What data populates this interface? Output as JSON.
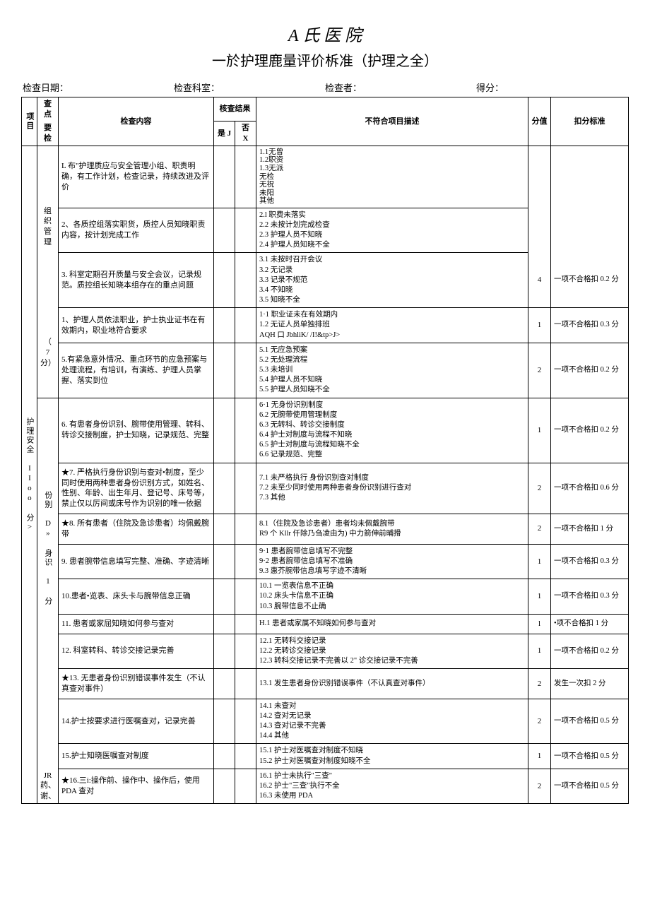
{
  "title1": "A 氏 医 院",
  "title2": "一於护理鹿量评价柝准（护理之全）",
  "meta": {
    "date_label": "检查日期：",
    "dept_label": "检查科室：",
    "checker_label": "检查者：",
    "score_label": "得分："
  },
  "headers": {
    "project": "项目",
    "checkpoint_top": "查点",
    "checkpoint_bot": "要检",
    "content": "检查内容",
    "result": "核查结果",
    "yes": "是 J",
    "no": "否 X",
    "noncon": "不符合项目描述",
    "score": "分值",
    "deduct": "扣分标准"
  },
  "project_label": "护理安全 IIoo 分>",
  "groups": {
    "g1": {
      "label_top": "组织",
      "label_bot": "管理",
      "sub1": "（",
      "sub2": "7 分）"
    },
    "g2": {
      "label": "份别 D» 身识 1 分"
    },
    "g3": {
      "label_top": "JR",
      "label_mid": "药、",
      "label_bot": "谢、"
    }
  },
  "rows": [
    {
      "content": "L 布\"护理质应与安全管理小组、职责明确，有工作计划，检查记录，持续改进及评价",
      "desc": "1.1无曾\n1.2职资\n1.3无派\n无检\n无祝\n未阳\n其他",
      "score": "",
      "deduct": ""
    },
    {
      "content": "2、各质控组落实职货，质控人员知晓职责内容，按计划完成工作",
      "desc": "2.l 职费未落实\n2.2 未按计划完成检查\n2.3 护理人员不知晓\n2.4 护理人员知晓不全",
      "score": "",
      "deduct": ""
    },
    {
      "content": "3. 科室定期召开质量与安全会议，记录规范。质控组长知晓本组存在的重点问题",
      "desc": "3.1 未按时召开会议\n3.2 无记录\n3.3 记录不规范\n3.4 不知晓\n3.5 知晓不全",
      "score": "4",
      "deduct": "一项不合格扣 0.2 分"
    },
    {
      "content": "1、护理人员依法职业，护士执业证书在有效期内，职业地符合要求",
      "desc": "1·1 职业证未在有效期内\n1.2 无证人员单独排班\nAQH 口 JbhliK/ /I!&tp>J>",
      "score": "1",
      "deduct": "一项不合格扣 0.3 分"
    },
    {
      "content": "5.有紧急意外情况、重点环节的应急预案与处理流程，有培训，有演练、护理人员掌握、落实到位",
      "desc": "5.1 无应急预案\n5.2 无处理流程\n5.3 未培训\n5.4 护理人员不知晓\n5.5 护理人员知晓不全",
      "score": "2",
      "deduct": "一项不合格扣 0.2 分"
    },
    {
      "content": "6. 有患者身份识别、腕带使用管理、转科、转诊交接制度，护士知晓，记录规范、完整",
      "desc": "6·1 无身份识别制度\n6.2 无腕带使用管理制度\n6.3 无转科、转诊交接制度\n6.4 护士对制度与流程不知晓\n6.5 护士对制度与流程知晓不全\n6.6 记录规范、完整",
      "score": "1",
      "deduct": "一项不合格扣 0.2 分"
    },
    {
      "content": "★7. 严格执行身份识别与查对•制度，至少同时使用两种患者身份识别方式，如姓名、性别、年龄、出生年月、登记号、床号等，禁止仅以厉间或床号作为识别的唯一依据",
      "desc": "7.1 未严格执行 身份识别查对制度\n7.2 未至少同时使用两种患者身份识别进行查对\n7.3 其他",
      "score": "2",
      "deduct": "一项不合格扣 0.6 分"
    },
    {
      "content": "★8. 所有患者（住院及急诊患者）均佩戴腕带",
      "desc": "8.1（住院及急诊患者）患者均未佩戴腕带\nR9 个 Kllr 仟除乃刍凌由为) 中力箭伸前晡搰",
      "score": "2",
      "deduct": "一项不合格扣 1 分"
    },
    {
      "content": "9. 患者腕带信息填写完整、准确、字迹清晰",
      "desc": "9·1 患者腕带信息填写不完整\n9·2 患者腕带信息填写不准确\n9.3 惠芥腕带信息填写字迹不清晰",
      "score": "1",
      "deduct": "一项不合格扣 0.3 分"
    },
    {
      "content": "10.患者•览表、床头卡与腕带信息正确",
      "desc": "10.1 一览表信息不正确\n10.2 床头卡信息不正确\n10.3 腕带信息不止确",
      "score": "1",
      "deduct": "一项不合格扣 0.3 分"
    },
    {
      "content": "11. 患者或家屈知晓如何参与查对",
      "desc": "H.1 患者或家属不知晓如何参与查对",
      "score": "l",
      "deduct": "•项不合格扣 1 分"
    },
    {
      "content": "12. 科室转科、转诊交接记录完善",
      "desc": "12.1 无转科交接记录\n12.2 无转诊交接记录\n12.3 转科交接记录不完善以 2\" 诊交接记录不完善",
      "score": "1",
      "deduct": "一项不合格扣 0.2 分"
    },
    {
      "content": "★13. 无患者身份识别错误事件发生（不认真查对事件）",
      "desc": "13.1 发生患者身份识别错误事件（不认真查对事件）",
      "score": "2",
      "deduct": "发生一次扣 2 分"
    },
    {
      "content": "14.护士按要求进行医嘱查对，记录完善",
      "desc": "14.1 未查对\n14.2 查对无记录\n14.3 查对记录不完善\n14.4 其他",
      "score": "2",
      "deduct": "一项不合格扣 0.5 分"
    },
    {
      "content": "15.护士知晓医嘱查对制度",
      "desc": "15.1 护士对医嘱查对制度不知晓\n15.2 护士对医嘱查对制度知晓不全",
      "score": "1",
      "deduct": "一项不合格扣 0.5 分"
    },
    {
      "content": "★16.三i:操作前、操作中、操作后，使用 PDA 查对",
      "desc": "16.1 护士未执行\"三查\"\n16.2 护士\"三查\"执行不全\n16.3 未使用 PDA",
      "score": "2",
      "deduct": "一项不合格扣 0.5 分"
    }
  ]
}
